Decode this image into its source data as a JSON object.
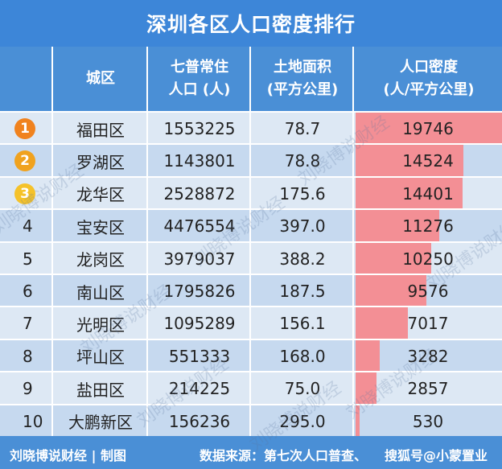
{
  "title": "深圳各区人口密度排行",
  "headers": {
    "rank": "",
    "district": "城区",
    "population": "七普常住\n人口 (人)",
    "area": "土地面积\n(平方公里)",
    "density": "人口密度\n(人/平方公里)"
  },
  "rows": [
    {
      "rank": "1",
      "district": "福田区",
      "population": "1553225",
      "area": "78.7",
      "density": "19746",
      "density_value": 19746
    },
    {
      "rank": "2",
      "district": "罗湖区",
      "population": "1143801",
      "area": "78.8",
      "density": "14524",
      "density_value": 14524
    },
    {
      "rank": "3",
      "district": "龙华区",
      "population": "2528872",
      "area": "175.6",
      "density": "14401",
      "density_value": 14401
    },
    {
      "rank": "4",
      "district": "宝安区",
      "population": "4476554",
      "area": "397.0",
      "density": "11276",
      "density_value": 11276
    },
    {
      "rank": "5",
      "district": "龙岗区",
      "population": "3979037",
      "area": "388.2",
      "density": "10250",
      "density_value": 10250
    },
    {
      "rank": "6",
      "district": "南山区",
      "population": "1795826",
      "area": "187.5",
      "density": "9576",
      "density_value": 9576
    },
    {
      "rank": "7",
      "district": "光明区",
      "population": "1095289",
      "area": "156.1",
      "density": "7017",
      "density_value": 7017
    },
    {
      "rank": "8",
      "district": "坪山区",
      "population": "551333",
      "area": "168.0",
      "density": "3282",
      "density_value": 3282
    },
    {
      "rank": "9",
      "district": "盐田区",
      "population": "214225",
      "area": "75.0",
      "density": "2857",
      "density_value": 2857
    },
    {
      "rank": "10",
      "district": "大鹏新区",
      "population": "156236",
      "area": "295.0",
      "density": "530",
      "density_value": 530
    }
  ],
  "medal_colors": [
    "#f0821e",
    "#f0a21e",
    "#f5c22a"
  ],
  "bar_color": "#f38f95",
  "footer": {
    "author": "刘晓博说财经 | 制图",
    "source": "数据来源：第七次人口普查、",
    "brand": "搜狐号@小蒙置业"
  },
  "watermark": "刘晓博说财经"
}
